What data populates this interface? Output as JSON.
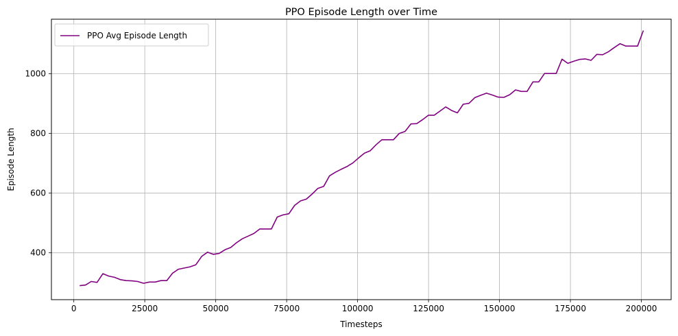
{
  "chart_data": {
    "type": "line",
    "title": "PPO Episode Length over Time",
    "xlabel": "Timesteps",
    "ylabel": "Episode Length",
    "xlim": [
      -7900,
      210500
    ],
    "ylim": [
      243,
      1183
    ],
    "xticks": [
      0,
      25000,
      50000,
      75000,
      100000,
      125000,
      150000,
      175000,
      200000
    ],
    "yticks": [
      400,
      600,
      800,
      1000
    ],
    "grid": true,
    "legend_position": "top-left",
    "series": [
      {
        "name": "PPO Avg Episode Length",
        "color": "#800080",
        "x": [
          2048,
          4096,
          6144,
          8192,
          10240,
          12288,
          14336,
          16384,
          18432,
          20480,
          22528,
          24576,
          26624,
          28672,
          30720,
          32768,
          34816,
          36864,
          38912,
          40960,
          43008,
          45056,
          47104,
          49152,
          51200,
          53248,
          55296,
          57344,
          59392,
          61440,
          63488,
          65536,
          67584,
          69632,
          71680,
          73728,
          75776,
          77824,
          79872,
          81920,
          83968,
          86016,
          88064,
          90112,
          92160,
          94208,
          96256,
          98304,
          100352,
          102400,
          104448,
          106496,
          108544,
          110592,
          112640,
          114688,
          116736,
          118784,
          120832,
          122880,
          124928,
          126976,
          129024,
          131072,
          133120,
          135168,
          137216,
          139264,
          141312,
          143360,
          145408,
          147456,
          149504,
          151552,
          153600,
          155648,
          157696,
          159744,
          161792,
          163840,
          165888,
          167936,
          169984,
          172032,
          174080,
          176128,
          178176,
          180224,
          182272,
          184320,
          186368,
          188416,
          190464,
          192512,
          194560,
          196608,
          198656,
          200704
        ],
        "values": [
          290,
          292,
          304,
          301,
          330,
          322,
          318,
          310,
          307,
          306,
          304,
          298,
          302,
          302,
          307,
          307,
          332,
          345,
          349,
          353,
          360,
          388,
          402,
          395,
          398,
          410,
          418,
          434,
          447,
          456,
          465,
          480,
          480,
          480,
          520,
          527,
          531,
          559,
          574,
          580,
          597,
          616,
          623,
          658,
          670,
          680,
          689,
          701,
          718,
          734,
          742,
          762,
          779,
          779,
          779,
          800,
          807,
          832,
          833,
          846,
          861,
          861,
          875,
          889,
          877,
          869,
          898,
          901,
          920,
          928,
          935,
          929,
          922,
          921,
          930,
          946,
          941,
          941,
          973,
          973,
          1001,
          1001,
          1001,
          1049,
          1035,
          1042,
          1048,
          1050,
          1045,
          1065,
          1064,
          1074,
          1088,
          1101,
          1093,
          1093,
          1093,
          1145
        ]
      }
    ]
  }
}
